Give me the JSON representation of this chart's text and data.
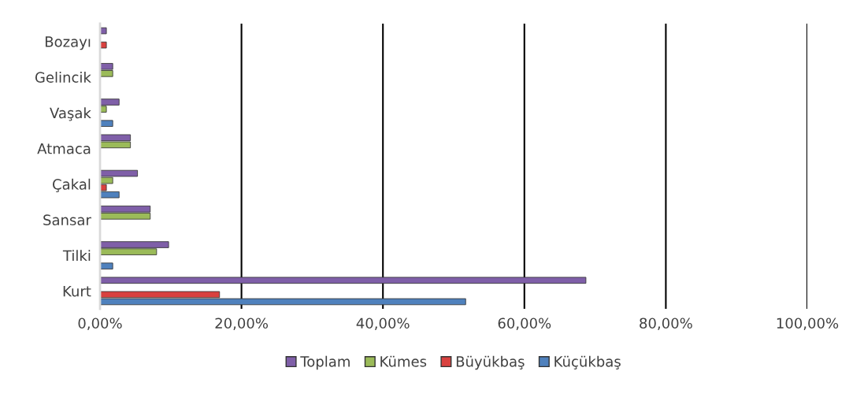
{
  "chart_data": {
    "type": "bar",
    "orientation": "horizontal",
    "categories": [
      "Bozayı",
      "Gelincik",
      "Vaşak",
      "Atmaca",
      "Çakal",
      "Sansar",
      "Tilki",
      "Kurt"
    ],
    "series": [
      {
        "name": "Toplam",
        "color": "#7f5fa8",
        "values": [
          0.9,
          1.8,
          2.7,
          4.3,
          5.3,
          7.1,
          9.7,
          68.7
        ]
      },
      {
        "name": "Kümes",
        "color": "#9bbb59",
        "values": [
          null,
          1.8,
          0.9,
          4.3,
          1.8,
          7.1,
          8.0,
          null
        ]
      },
      {
        "name": "Büyükbaş",
        "color": "#d9413f",
        "values": [
          0.9,
          null,
          null,
          null,
          0.9,
          null,
          null,
          16.9
        ]
      },
      {
        "name": "Küçükbaş",
        "color": "#4f81bd",
        "values": [
          null,
          null,
          1.8,
          null,
          2.7,
          null,
          1.8,
          51.7
        ]
      }
    ],
    "xlim": [
      0,
      100
    ],
    "xticks": [
      {
        "value": 0,
        "label": "0,00%"
      },
      {
        "value": 20,
        "label": "20,00%"
      },
      {
        "value": 40,
        "label": "40,00%"
      },
      {
        "value": 60,
        "label": "60,00%"
      },
      {
        "value": 80,
        "label": "80,00%"
      },
      {
        "value": 100,
        "label": "100,00%"
      }
    ],
    "grid": "x",
    "legend": "bottom"
  }
}
